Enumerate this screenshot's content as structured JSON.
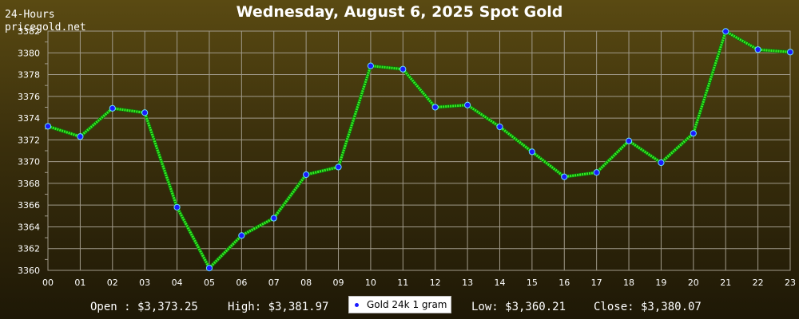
{
  "header": {
    "period_label": "24-Hours",
    "site_label": "pricegold.net"
  },
  "stats": {
    "open": "Open : $3,373.25",
    "high": "High: $3,381.97",
    "low": "Low: $3,360.21",
    "close": "Close: $3,380.07"
  },
  "colors": {
    "line": "#33ee22",
    "marker": "#1a1aff",
    "grid": "#a09a8a",
    "axis_text": "#ffffff"
  },
  "chart_data": {
    "type": "line",
    "title": "Wednesday, August 6, 2025 Spot Gold",
    "xlabel": "",
    "ylabel": "",
    "categories": [
      "00",
      "01",
      "02",
      "03",
      "04",
      "05",
      "06",
      "07",
      "08",
      "09",
      "10",
      "11",
      "12",
      "13",
      "14",
      "15",
      "16",
      "17",
      "18",
      "19",
      "20",
      "21",
      "22",
      "23"
    ],
    "ylim": [
      3360,
      3382
    ],
    "yticks": [
      3360,
      3362,
      3364,
      3366,
      3368,
      3370,
      3372,
      3374,
      3376,
      3378,
      3380,
      3382
    ],
    "grid": true,
    "legend_position": "bottom-center",
    "series": [
      {
        "name": "Gold 24k 1 gram",
        "values": [
          3373.25,
          3372.3,
          3374.9,
          3374.5,
          3365.8,
          3360.21,
          3363.2,
          3364.8,
          3368.8,
          3369.5,
          3378.8,
          3378.5,
          3375.0,
          3375.2,
          3373.2,
          3370.9,
          3368.6,
          3369.0,
          3371.9,
          3369.9,
          3372.6,
          3381.97,
          3380.3,
          3380.07
        ]
      }
    ]
  }
}
